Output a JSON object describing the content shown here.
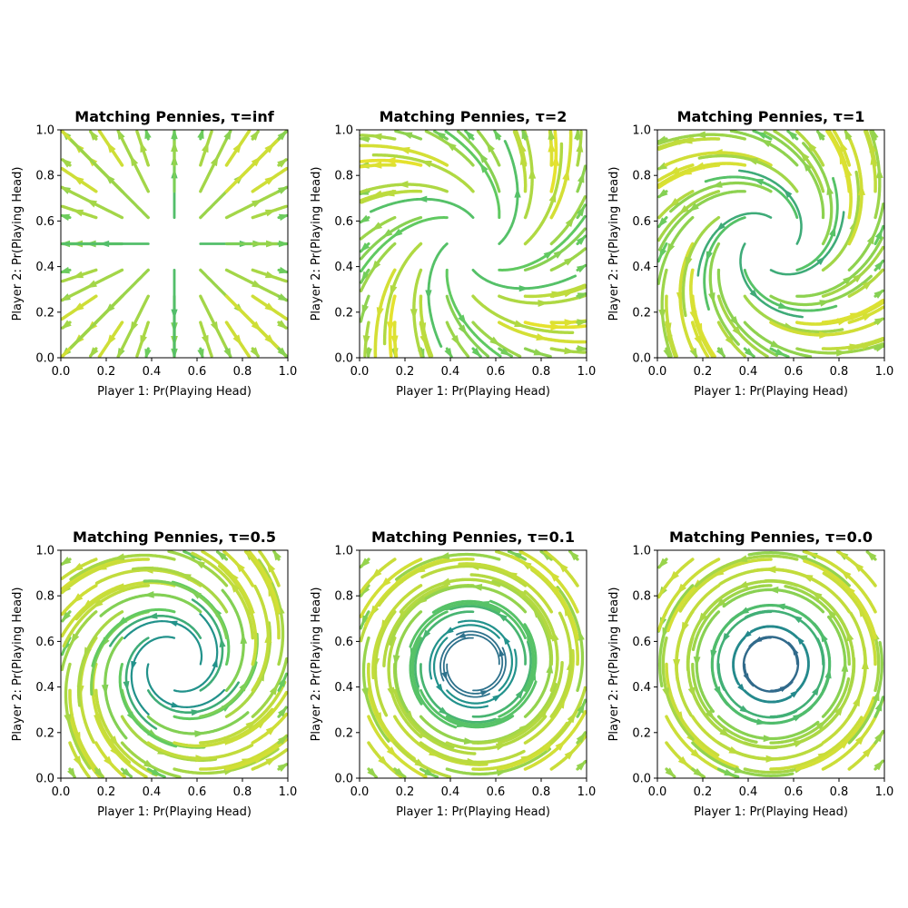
{
  "chart_data": [
    {
      "type": "streamplot",
      "title": "Matching Pennies, τ=inf",
      "tau": "inf",
      "xlabel": "Player 1: Pr(Playing Head)",
      "ylabel": "Player 2: Pr(Playing Head)",
      "xlim": [
        0,
        1
      ],
      "ylim": [
        0,
        1
      ],
      "xticks": [
        "0.0",
        "0.2",
        "0.4",
        "0.6",
        "0.8",
        "1.0"
      ],
      "yticks": [
        "0.0",
        "0.2",
        "0.4",
        "0.6",
        "0.8",
        "1.0"
      ],
      "center": [
        0.5,
        0.5
      ],
      "dynamics": "radial flow outward from (0.5, 0.5) toward the corners"
    },
    {
      "type": "streamplot",
      "title": "Matching Pennies, τ=2",
      "tau": "2",
      "xlabel": "Player 1: Pr(Playing Head)",
      "ylabel": "Player 2: Pr(Playing Head)",
      "xlim": [
        0,
        1
      ],
      "ylim": [
        0,
        1
      ],
      "xticks": [
        "0.0",
        "0.2",
        "0.4",
        "0.6",
        "0.8",
        "1.0"
      ],
      "yticks": [
        "0.0",
        "0.2",
        "0.4",
        "0.6",
        "0.8",
        "1.0"
      ],
      "center": [
        0.5,
        0.5
      ],
      "dynamics": "outward spiral, mostly radial"
    },
    {
      "type": "streamplot",
      "title": "Matching Pennies, τ=1",
      "tau": "1",
      "xlabel": "Player 1: Pr(Playing Head)",
      "ylabel": "Player 2: Pr(Playing Head)",
      "xlim": [
        0,
        1
      ],
      "ylim": [
        0,
        1
      ],
      "xticks": [
        "0.0",
        "0.2",
        "0.4",
        "0.6",
        "0.8",
        "1.0"
      ],
      "yticks": [
        "0.0",
        "0.2",
        "0.4",
        "0.6",
        "0.8",
        "1.0"
      ],
      "center": [
        0.5,
        0.5
      ],
      "dynamics": "outward spiral"
    },
    {
      "type": "streamplot",
      "title": "Matching Pennies, τ=0.5",
      "tau": "0.5",
      "xlabel": "Player 1: Pr(Playing Head)",
      "ylabel": "Player 2: Pr(Playing Head)",
      "xlim": [
        0,
        1
      ],
      "ylim": [
        0,
        1
      ],
      "xticks": [
        "0.0",
        "0.2",
        "0.4",
        "0.6",
        "0.8",
        "1.0"
      ],
      "yticks": [
        "0.0",
        "0.2",
        "0.4",
        "0.6",
        "0.8",
        "1.0"
      ],
      "center": [
        0.5,
        0.5
      ],
      "dynamics": "slow outward spiral"
    },
    {
      "type": "streamplot",
      "title": "Matching Pennies, τ=0.1",
      "tau": "0.1",
      "xlabel": "Player 1: Pr(Playing Head)",
      "ylabel": "Player 2: Pr(Playing Head)",
      "xlim": [
        0,
        1
      ],
      "ylim": [
        0,
        1
      ],
      "xticks": [
        "0.0",
        "0.2",
        "0.4",
        "0.6",
        "0.8",
        "1.0"
      ],
      "yticks": [
        "0.0",
        "0.2",
        "0.4",
        "0.6",
        "0.8",
        "1.0"
      ],
      "center": [
        0.5,
        0.5
      ],
      "dynamics": "near-closed cycles around (0.5, 0.5)"
    },
    {
      "type": "streamplot",
      "title": "Matching Pennies, τ=0.0",
      "tau": "0.0",
      "xlabel": "Player 1: Pr(Playing Head)",
      "ylabel": "Player 2: Pr(Playing Head)",
      "xlim": [
        0,
        1
      ],
      "ylim": [
        0,
        1
      ],
      "xticks": [
        "0.0",
        "0.2",
        "0.4",
        "0.6",
        "0.8",
        "1.0"
      ],
      "yticks": [
        "0.0",
        "0.2",
        "0.4",
        "0.6",
        "0.8",
        "1.0"
      ],
      "center": [
        0.5,
        0.5
      ],
      "dynamics": "closed cycles around (0.5, 0.5)"
    }
  ],
  "colormap": [
    "#440154",
    "#3b528b",
    "#21918c",
    "#5ec962",
    "#fde725"
  ]
}
